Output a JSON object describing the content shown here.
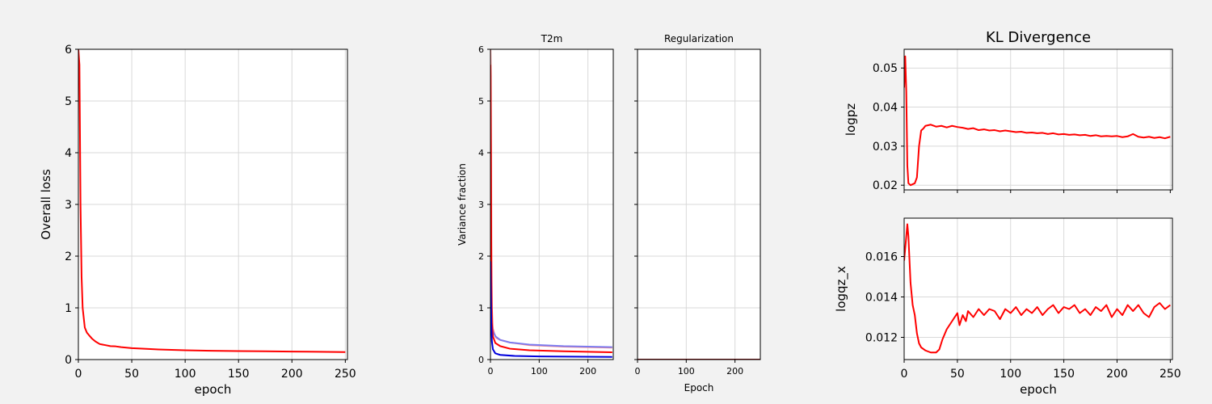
{
  "colors": {
    "background": "#f2f2f2",
    "red": "#ff0000",
    "blue": "#0000dd",
    "light_blue": "#7b7bf0",
    "light_red": "#ff8a8a",
    "grid": "#d9d9d9"
  },
  "chart_data": [
    {
      "id": "overall",
      "type": "line",
      "title": "",
      "xlabel": "epoch",
      "ylabel": "Overall loss",
      "xlim": [
        0,
        252
      ],
      "ylim": [
        0,
        6
      ],
      "xticks": [
        0,
        50,
        100,
        150,
        200,
        250
      ],
      "yticks": [
        0,
        1,
        2,
        3,
        4,
        5,
        6
      ],
      "grid": true,
      "series": [
        {
          "color": "#ff0000",
          "width": 2,
          "points": [
            [
              0,
              6.0
            ],
            [
              1,
              5.7
            ],
            [
              2,
              3.0
            ],
            [
              3,
              1.6
            ],
            [
              4,
              1.0
            ],
            [
              6,
              0.62
            ],
            [
              8,
              0.52
            ],
            [
              10,
              0.47
            ],
            [
              13,
              0.4
            ],
            [
              16,
              0.35
            ],
            [
              20,
              0.3
            ],
            [
              25,
              0.28
            ],
            [
              30,
              0.26
            ],
            [
              35,
              0.255
            ],
            [
              40,
              0.24
            ],
            [
              50,
              0.22
            ],
            [
              60,
              0.21
            ],
            [
              75,
              0.195
            ],
            [
              100,
              0.18
            ],
            [
              125,
              0.17
            ],
            [
              150,
              0.165
            ],
            [
              175,
              0.16
            ],
            [
              200,
              0.155
            ],
            [
              225,
              0.15
            ],
            [
              250,
              0.145
            ]
          ]
        }
      ]
    },
    {
      "id": "t2m",
      "type": "line",
      "title": "T2m",
      "xlabel": "",
      "ylabel": "Variance fraction",
      "xlim": [
        0,
        252
      ],
      "ylim": [
        0,
        6
      ],
      "xticks": [
        0,
        100,
        200
      ],
      "yticks": [
        0,
        1,
        2,
        3,
        4,
        5,
        6
      ],
      "grid": true,
      "series": [
        {
          "color": "#ff8a8a",
          "width": 2,
          "points": [
            [
              0,
              6.0
            ],
            [
              1,
              5.5
            ],
            [
              2,
              2.2
            ],
            [
              3,
              1.0
            ],
            [
              5,
              0.6
            ],
            [
              8,
              0.5
            ],
            [
              12,
              0.42
            ],
            [
              20,
              0.38
            ],
            [
              40,
              0.33
            ],
            [
              80,
              0.28
            ],
            [
              150,
              0.25
            ],
            [
              250,
              0.23
            ]
          ]
        },
        {
          "color": "#7b7bf0",
          "width": 2,
          "points": [
            [
              0,
              1.0
            ],
            [
              2,
              0.7
            ],
            [
              5,
              0.55
            ],
            [
              10,
              0.45
            ],
            [
              20,
              0.38
            ],
            [
              40,
              0.33
            ],
            [
              80,
              0.29
            ],
            [
              150,
              0.26
            ],
            [
              250,
              0.24
            ]
          ]
        },
        {
          "color": "#ff0000",
          "width": 2,
          "points": [
            [
              0,
              5.7
            ],
            [
              1,
              4.0
            ],
            [
              2,
              1.5
            ],
            [
              3,
              0.7
            ],
            [
              5,
              0.45
            ],
            [
              10,
              0.32
            ],
            [
              20,
              0.26
            ],
            [
              40,
              0.21
            ],
            [
              80,
              0.18
            ],
            [
              150,
              0.16
            ],
            [
              250,
              0.14
            ]
          ]
        },
        {
          "color": "#0000dd",
          "width": 2,
          "points": [
            [
              0,
              1.9
            ],
            [
              1,
              1.2
            ],
            [
              2,
              0.6
            ],
            [
              3,
              0.35
            ],
            [
              5,
              0.2
            ],
            [
              10,
              0.12
            ],
            [
              20,
              0.09
            ],
            [
              50,
              0.07
            ],
            [
              100,
              0.06
            ],
            [
              250,
              0.05
            ]
          ]
        }
      ]
    },
    {
      "id": "regularization",
      "type": "line",
      "title": "Regularization",
      "xlabel": "Epoch",
      "ylabel": "",
      "xlim": [
        0,
        252
      ],
      "ylim": [
        0,
        6
      ],
      "xticks": [
        0,
        100,
        200
      ],
      "yticks": [],
      "grid": true,
      "series": [
        {
          "color": "#8b0000",
          "width": 2,
          "points": [
            [
              0,
              0.0
            ],
            [
              252,
              0.0
            ]
          ]
        }
      ]
    },
    {
      "id": "logpz",
      "type": "line",
      "title": "KL Divergence",
      "xlabel": "",
      "ylabel": "logpz",
      "xlim": [
        0,
        252
      ],
      "ylim": [
        0.0188,
        0.0548
      ],
      "xticks": [
        0,
        50,
        100,
        150,
        200,
        250
      ],
      "yticks": [
        0.02,
        0.03,
        0.04,
        0.05
      ],
      "ytick_labels": [
        "0.02",
        "0.03",
        "0.04",
        "0.05"
      ],
      "grid": true,
      "series": [
        {
          "color": "#ff0000",
          "width": 2,
          "points": [
            [
              0,
              0.045
            ],
            [
              1,
              0.053
            ],
            [
              2,
              0.044
            ],
            [
              3,
              0.025
            ],
            [
              4,
              0.0205
            ],
            [
              6,
              0.02
            ],
            [
              10,
              0.0205
            ],
            [
              12,
              0.022
            ],
            [
              14,
              0.03
            ],
            [
              16,
              0.034
            ],
            [
              18,
              0.0345
            ],
            [
              20,
              0.0352
            ],
            [
              25,
              0.0355
            ],
            [
              30,
              0.035
            ],
            [
              35,
              0.0352
            ],
            [
              40,
              0.0348
            ],
            [
              45,
              0.0352
            ],
            [
              50,
              0.0349
            ],
            [
              55,
              0.0347
            ],
            [
              60,
              0.0344
            ],
            [
              65,
              0.0346
            ],
            [
              70,
              0.0341
            ],
            [
              75,
              0.0343
            ],
            [
              80,
              0.034
            ],
            [
              85,
              0.0341
            ],
            [
              90,
              0.0338
            ],
            [
              95,
              0.034
            ],
            [
              100,
              0.0338
            ],
            [
              105,
              0.0336
            ],
            [
              110,
              0.0337
            ],
            [
              115,
              0.0334
            ],
            [
              120,
              0.0335
            ],
            [
              125,
              0.0333
            ],
            [
              130,
              0.0334
            ],
            [
              135,
              0.0331
            ],
            [
              140,
              0.0333
            ],
            [
              145,
              0.033
            ],
            [
              150,
              0.0331
            ],
            [
              155,
              0.0329
            ],
            [
              160,
              0.033
            ],
            [
              165,
              0.0328
            ],
            [
              170,
              0.0329
            ],
            [
              175,
              0.0326
            ],
            [
              180,
              0.0328
            ],
            [
              185,
              0.0325
            ],
            [
              190,
              0.0326
            ],
            [
              195,
              0.0325
            ],
            [
              200,
              0.0326
            ],
            [
              205,
              0.0323
            ],
            [
              210,
              0.0325
            ],
            [
              215,
              0.0331
            ],
            [
              220,
              0.0324
            ],
            [
              225,
              0.0322
            ],
            [
              230,
              0.0324
            ],
            [
              235,
              0.0321
            ],
            [
              240,
              0.0323
            ],
            [
              245,
              0.032
            ],
            [
              250,
              0.0324
            ]
          ]
        }
      ]
    },
    {
      "id": "logqz_x",
      "type": "line",
      "title": "",
      "xlabel": "epoch",
      "ylabel": "logqz_x",
      "xlim": [
        0,
        252
      ],
      "ylim": [
        0.0109,
        0.0179
      ],
      "xticks": [
        0,
        50,
        100,
        150,
        200,
        250
      ],
      "yticks": [
        0.012,
        0.014,
        0.016
      ],
      "ytick_labels": [
        "0.012",
        "0.014",
        "0.016"
      ],
      "grid": true,
      "series": [
        {
          "color": "#ff0000",
          "width": 2,
          "points": [
            [
              0,
              0.0158
            ],
            [
              2,
              0.017
            ],
            [
              3,
              0.0176
            ],
            [
              4,
              0.017
            ],
            [
              6,
              0.0147
            ],
            [
              8,
              0.0136
            ],
            [
              10,
              0.0131
            ],
            [
              12,
              0.0122
            ],
            [
              14,
              0.0117
            ],
            [
              16,
              0.0115
            ],
            [
              20,
              0.01135
            ],
            [
              25,
              0.01125
            ],
            [
              30,
              0.01125
            ],
            [
              33,
              0.0114
            ],
            [
              36,
              0.0119
            ],
            [
              40,
              0.0124
            ],
            [
              45,
              0.0128
            ],
            [
              50,
              0.0132
            ],
            [
              52,
              0.0126
            ],
            [
              55,
              0.0131
            ],
            [
              58,
              0.0128
            ],
            [
              60,
              0.0133
            ],
            [
              65,
              0.013
            ],
            [
              70,
              0.0134
            ],
            [
              75,
              0.0131
            ],
            [
              80,
              0.0134
            ],
            [
              85,
              0.0133
            ],
            [
              90,
              0.0129
            ],
            [
              95,
              0.0134
            ],
            [
              100,
              0.0132
            ],
            [
              105,
              0.0135
            ],
            [
              110,
              0.0131
            ],
            [
              115,
              0.0134
            ],
            [
              120,
              0.0132
            ],
            [
              125,
              0.0135
            ],
            [
              130,
              0.0131
            ],
            [
              135,
              0.0134
            ],
            [
              140,
              0.0136
            ],
            [
              145,
              0.0132
            ],
            [
              150,
              0.0135
            ],
            [
              155,
              0.0134
            ],
            [
              160,
              0.0136
            ],
            [
              165,
              0.0132
            ],
            [
              170,
              0.0134
            ],
            [
              175,
              0.0131
            ],
            [
              180,
              0.0135
            ],
            [
              185,
              0.0133
            ],
            [
              190,
              0.0136
            ],
            [
              195,
              0.013
            ],
            [
              200,
              0.0134
            ],
            [
              205,
              0.0131
            ],
            [
              210,
              0.0136
            ],
            [
              215,
              0.0133
            ],
            [
              220,
              0.0136
            ],
            [
              225,
              0.0132
            ],
            [
              230,
              0.013
            ],
            [
              235,
              0.0135
            ],
            [
              240,
              0.0137
            ],
            [
              245,
              0.0134
            ],
            [
              250,
              0.0136
            ]
          ]
        }
      ]
    }
  ]
}
